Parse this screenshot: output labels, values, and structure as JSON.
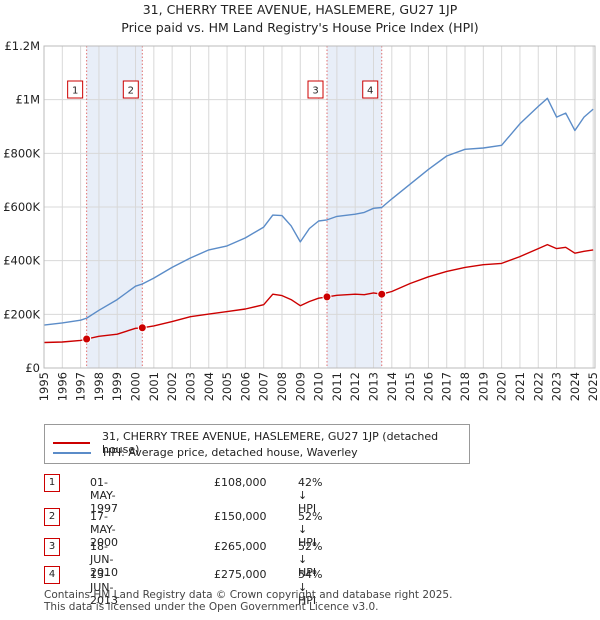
{
  "chart_data": {
    "type": "line",
    "title": "31, CHERRY TREE AVENUE, HASLEMERE, GU27 1JP",
    "subtitle": "Price paid vs. HM Land Registry's House Price Index (HPI)",
    "xlabel": "",
    "ylabel": "",
    "xlim": [
      1995,
      2025.1
    ],
    "ylim": [
      0,
      1200000
    ],
    "ytick_values": [
      0,
      200000,
      400000,
      600000,
      800000,
      1000000,
      1200000
    ],
    "ytick_labels": [
      "£0",
      "£200K",
      "£400K",
      "£600K",
      "£800K",
      "£1M",
      "£1.2M"
    ],
    "xtick_labels": [
      "1995",
      "1996",
      "1997",
      "1998",
      "1999",
      "2000",
      "2001",
      "2002",
      "2003",
      "2004",
      "2005",
      "2006",
      "2007",
      "2008",
      "2009",
      "2010",
      "2011",
      "2012",
      "2013",
      "2014",
      "2015",
      "2016",
      "2017",
      "2018",
      "2019",
      "2020",
      "2021",
      "2022",
      "2023",
      "2024",
      "2025"
    ],
    "series": [
      {
        "name": "31, CHERRY TREE AVENUE, HASLEMERE, GU27 1JP (detached house)",
        "color": "#cc0000",
        "x": [
          1995,
          1996,
          1997.0,
          1997.33,
          1998,
          1999,
          2000.0,
          2000.37,
          2001,
          2002,
          2003,
          2004,
          2005,
          2006,
          2007.0,
          2007.5,
          2008,
          2008.5,
          2009.0,
          2009.5,
          2010.0,
          2010.46,
          2011,
          2012,
          2012.5,
          2013.0,
          2013.45,
          2014,
          2015,
          2016,
          2017,
          2018,
          2019,
          2020,
          2021,
          2022.0,
          2022.5,
          2023,
          2023.5,
          2024,
          2024.5,
          2025.0
        ],
        "y": [
          95000,
          97000,
          103000,
          108000,
          118000,
          126000,
          148000,
          150000,
          157000,
          173000,
          191000,
          201000,
          210000,
          220000,
          236000,
          275000,
          270000,
          255000,
          232000,
          248000,
          260000,
          265000,
          271000,
          275000,
          273000,
          280000,
          275000,
          285000,
          315000,
          340000,
          360000,
          375000,
          385000,
          390000,
          415000,
          445000,
          460000,
          445000,
          450000,
          428000,
          435000,
          440000
        ]
      },
      {
        "name": "HPI: Average price, detached house, Waverley",
        "color": "#5b8cc8",
        "x": [
          1995,
          1996,
          1997.0,
          1997.33,
          1998,
          1999,
          2000.0,
          2000.37,
          2001,
          2002,
          2003,
          2004,
          2005,
          2006,
          2007.0,
          2007.5,
          2008,
          2008.5,
          2009.0,
          2009.5,
          2010.0,
          2010.46,
          2011,
          2012,
          2012.5,
          2013.0,
          2013.45,
          2014,
          2015,
          2016,
          2017,
          2018,
          2019,
          2020,
          2021,
          2022.0,
          2022.5,
          2023,
          2023.5,
          2024,
          2024.5,
          2025.0
        ],
        "y": [
          160000,
          168000,
          178000,
          186000,
          215000,
          255000,
          305000,
          313000,
          335000,
          375000,
          410000,
          440000,
          455000,
          485000,
          525000,
          570000,
          568000,
          530000,
          470000,
          520000,
          548000,
          552000,
          565000,
          573000,
          580000,
          595000,
          598000,
          630000,
          685000,
          740000,
          790000,
          815000,
          820000,
          830000,
          910000,
          975000,
          1005000,
          935000,
          950000,
          885000,
          935000,
          965000
        ]
      }
    ],
    "sale_points": [
      {
        "label": "1",
        "x": 1997.33,
        "y": 108000
      },
      {
        "label": "2",
        "x": 2000.37,
        "y": 150000
      },
      {
        "label": "3",
        "x": 2010.46,
        "y": 265000
      },
      {
        "label": "4",
        "x": 2013.45,
        "y": 275000
      }
    ],
    "shaded_spans": [
      [
        1997.33,
        2000.37
      ],
      [
        2010.46,
        2013.45
      ]
    ],
    "colors": {
      "grid": "#d8d8d8",
      "shade": "#e8eef8",
      "marker_line": "#e07070"
    }
  },
  "legend": {
    "property_label": "31, CHERRY TREE AVENUE, HASLEMERE, GU27 1JP (detached house)",
    "hpi_label": "HPI: Average price, detached house, Waverley"
  },
  "transactions": [
    {
      "num": "1",
      "date": "01-MAY-1997",
      "price": "£108,000",
      "hpi": "42% ↓ HPI"
    },
    {
      "num": "2",
      "date": "17-MAY-2000",
      "price": "£150,000",
      "hpi": "52% ↓ HPI"
    },
    {
      "num": "3",
      "date": "18-JUN-2010",
      "price": "£265,000",
      "hpi": "52% ↓ HPI"
    },
    {
      "num": "4",
      "date": "13-JUN-2013",
      "price": "£275,000",
      "hpi": "54% ↓ HPI"
    }
  ],
  "footer": {
    "line1": "Contains HM Land Registry data © Crown copyright and database right 2025.",
    "line2": "This data is licensed under the Open Government Licence v3.0."
  }
}
